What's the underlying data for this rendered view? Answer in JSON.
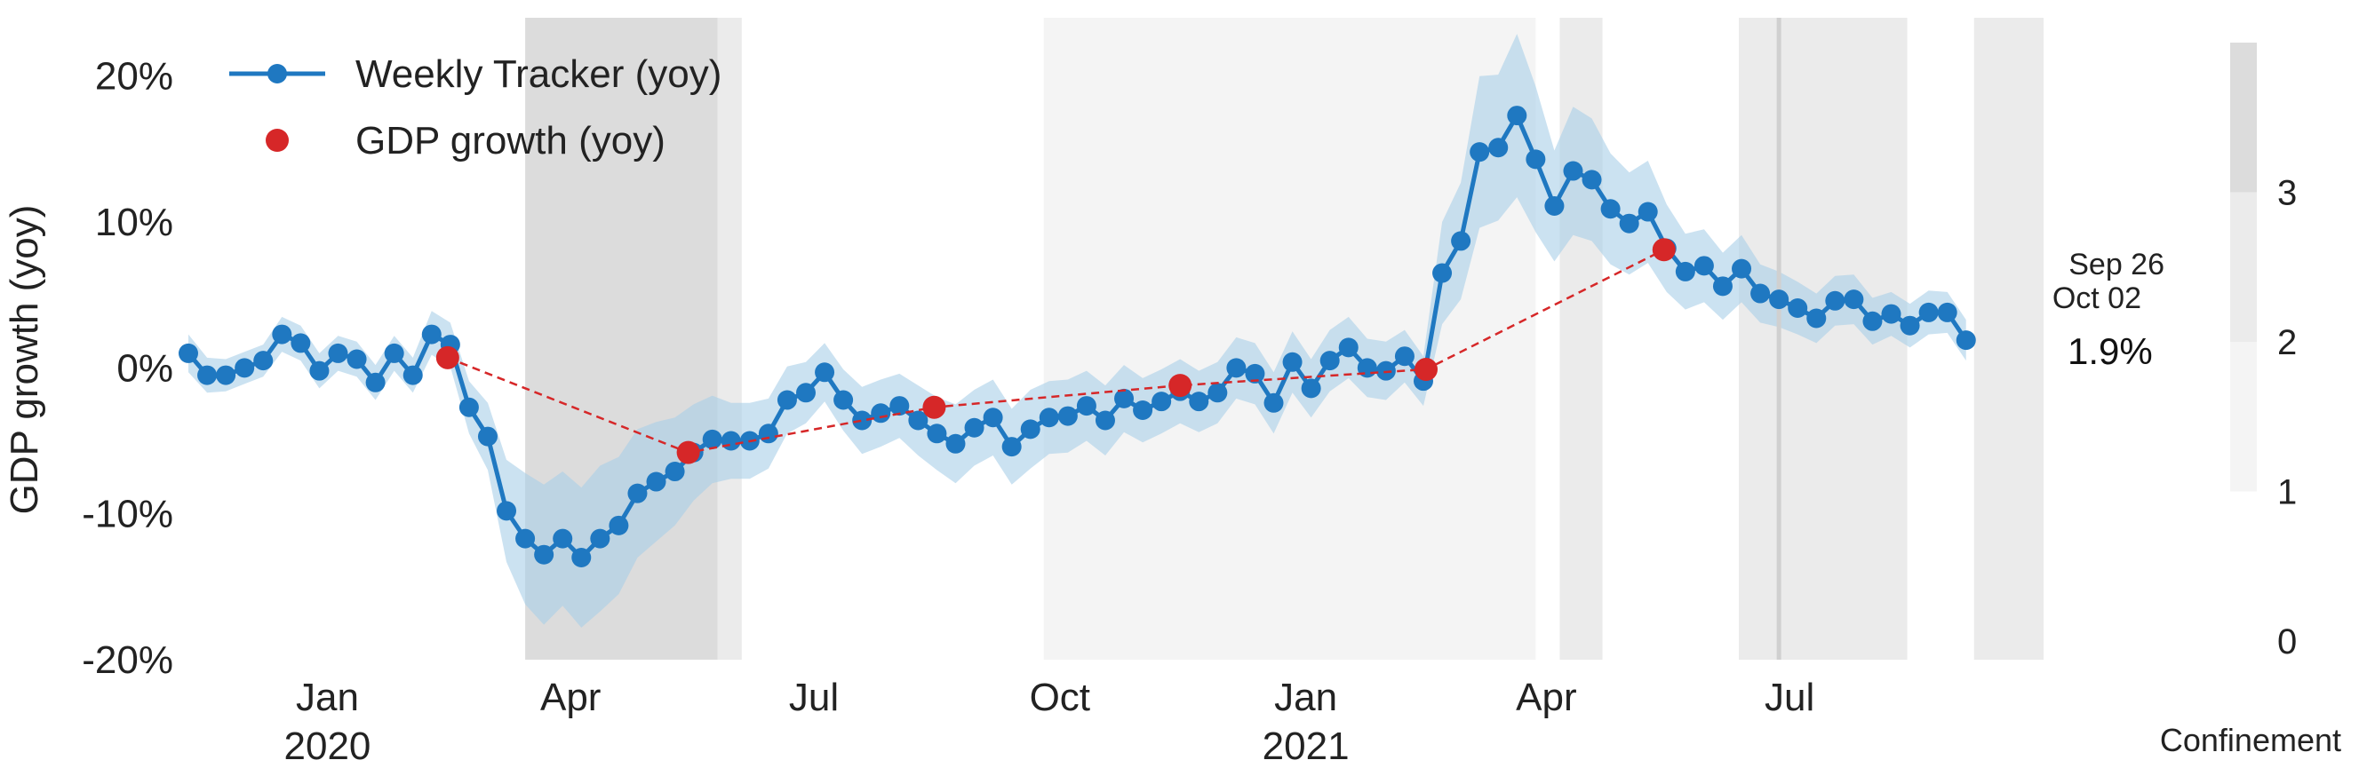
{
  "chart_data": {
    "type": "line",
    "ylabel": "GDP growth (yoy)",
    "ylim": [
      -20,
      24
    ],
    "yticks": [
      -20,
      -10,
      0,
      10,
      20
    ],
    "ytick_labels": [
      "-20%",
      "-10%",
      "0%",
      "10%",
      "20%"
    ],
    "xticks": [
      {
        "date": "2020-01-01",
        "label": "Jan",
        "year": "2020"
      },
      {
        "date": "2020-04-01",
        "label": "Apr",
        "year": ""
      },
      {
        "date": "2020-07-01",
        "label": "Jul",
        "year": ""
      },
      {
        "date": "2020-10-01",
        "label": "Oct",
        "year": ""
      },
      {
        "date": "2021-01-01",
        "label": "Jan",
        "year": "2021"
      },
      {
        "date": "2021-04-01",
        "label": "Apr",
        "year": ""
      },
      {
        "date": "2021-07-01",
        "label": "Jul",
        "year": ""
      }
    ],
    "x_start": "2019-11-10",
    "x_end": "2021-10-04",
    "colors": {
      "tracker": "#1f78c1",
      "band": "#a8cfe8",
      "gdp": "#d62728"
    },
    "legend": {
      "position": "top-left",
      "entries": [
        {
          "label": "Weekly Tracker (yoy)",
          "marker": "line-dot",
          "color": "#1f78c1"
        },
        {
          "label": "GDP growth (yoy)",
          "marker": "dot",
          "color": "#d62728"
        }
      ]
    },
    "annotation": {
      "date_1": "Sep 26",
      "date_2": "Oct 02",
      "value": "1.9%"
    },
    "vertical_line_date": "2021-06-27",
    "confinement": {
      "label": "Confinement",
      "ticks": [
        "0",
        "1",
        "2",
        "3"
      ],
      "levels": [
        {
          "level": 3,
          "color": "#dcdcdc"
        },
        {
          "level": 2,
          "color": "#ebebeb"
        },
        {
          "level": 1,
          "color": "#f4f4f4"
        }
      ],
      "periods": [
        {
          "start": "2020-03-15",
          "end": "2020-05-26",
          "level": 3
        },
        {
          "start": "2020-05-26",
          "end": "2020-06-04",
          "level": 2
        },
        {
          "start": "2020-09-25",
          "end": "2021-03-28",
          "level": 1
        },
        {
          "start": "2021-04-06",
          "end": "2021-04-22",
          "level": 2
        },
        {
          "start": "2021-06-12",
          "end": "2021-08-14",
          "level": 2
        },
        {
          "start": "2021-09-08",
          "end": "2021-10-04",
          "level": 2
        }
      ]
    },
    "series": [
      {
        "name": "Weekly Tracker (yoy)",
        "start_date": "2019-11-10",
        "step_days": 7,
        "values": [
          1.0,
          -0.5,
          -0.5,
          0.0,
          0.5,
          2.3,
          1.7,
          -0.2,
          1.0,
          0.6,
          -1.0,
          1.0,
          -0.5,
          2.3,
          1.6,
          -2.7,
          -4.7,
          -9.8,
          -11.7,
          -12.8,
          -11.7,
          -13.0,
          -11.7,
          -10.8,
          -8.6,
          -7.8,
          -7.1,
          -5.8,
          -4.9,
          -5.0,
          -5.0,
          -4.5,
          -2.2,
          -1.7,
          -0.3,
          -2.2,
          -3.6,
          -3.1,
          -2.6,
          -3.6,
          -4.5,
          -5.2,
          -4.1,
          -3.4,
          -5.4,
          -4.2,
          -3.4,
          -3.3,
          -2.6,
          -3.6,
          -2.1,
          -2.9,
          -2.3,
          -1.6,
          -2.3,
          -1.7,
          0.0,
          -0.4,
          -2.4,
          0.4,
          -1.4,
          0.5,
          1.4,
          0.0,
          -0.2,
          0.8,
          -0.9,
          6.5,
          8.7,
          14.8,
          15.1,
          17.3,
          14.3,
          11.1,
          13.5,
          12.9,
          10.9,
          9.9,
          10.7,
          8.2,
          6.6,
          7.0,
          5.6,
          6.8,
          5.1,
          4.7,
          4.1,
          3.4,
          4.6,
          4.7,
          3.2,
          3.7,
          2.9,
          3.8,
          3.8,
          1.9
        ],
        "lower": [
          -0.3,
          -1.7,
          -1.6,
          -1.1,
          -0.6,
          1.1,
          0.5,
          -1.4,
          -0.2,
          -0.6,
          -2.2,
          -0.2,
          -1.7,
          0.9,
          0.1,
          -4.5,
          -7.0,
          -13.3,
          -16.2,
          -17.6,
          -16.3,
          -17.8,
          -16.7,
          -15.5,
          -13.0,
          -11.9,
          -10.8,
          -9.1,
          -7.9,
          -7.6,
          -7.6,
          -6.9,
          -4.5,
          -3.8,
          -2.3,
          -4.3,
          -5.9,
          -5.4,
          -4.8,
          -6.0,
          -7.0,
          -7.9,
          -6.7,
          -6.0,
          -8.0,
          -6.9,
          -5.9,
          -5.8,
          -5.0,
          -6.0,
          -4.4,
          -5.1,
          -4.5,
          -3.8,
          -4.4,
          -3.8,
          -2.1,
          -2.5,
          -4.5,
          -1.7,
          -3.4,
          -1.6,
          -0.7,
          -2.0,
          -2.2,
          -1.0,
          -2.6,
          3.0,
          4.7,
          9.6,
          10.1,
          11.7,
          9.3,
          7.3,
          9.1,
          8.7,
          7.1,
          6.4,
          7.2,
          5.2,
          4.0,
          4.5,
          3.3,
          4.5,
          3.1,
          2.8,
          2.3,
          1.7,
          2.9,
          3.0,
          1.6,
          2.2,
          1.4,
          2.3,
          2.4,
          0.5
        ],
        "upper": [
          2.3,
          0.7,
          0.6,
          1.1,
          1.6,
          3.5,
          2.9,
          1.0,
          2.2,
          1.8,
          0.2,
          2.2,
          0.7,
          3.9,
          3.1,
          -0.9,
          -2.4,
          -6.3,
          -7.2,
          -8.0,
          -7.1,
          -8.2,
          -6.7,
          -6.1,
          -4.2,
          -3.7,
          -3.4,
          -2.5,
          -1.9,
          -2.4,
          -2.4,
          -2.1,
          0.1,
          0.4,
          1.7,
          -0.1,
          -1.3,
          -0.8,
          -0.4,
          -1.2,
          -2.0,
          -2.5,
          -1.5,
          -0.8,
          -2.8,
          -1.5,
          -0.9,
          -0.8,
          -0.2,
          -1.2,
          0.2,
          -0.7,
          -0.1,
          0.6,
          -0.2,
          0.4,
          2.1,
          1.7,
          -0.3,
          2.5,
          0.6,
          2.6,
          3.5,
          2.0,
          1.8,
          2.6,
          0.8,
          10.0,
          12.7,
          20.0,
          20.1,
          22.9,
          19.3,
          14.9,
          17.9,
          17.1,
          14.7,
          13.4,
          14.2,
          11.2,
          9.2,
          9.5,
          7.9,
          9.1,
          7.1,
          6.6,
          5.9,
          5.1,
          6.3,
          6.4,
          4.8,
          5.2,
          4.4,
          5.3,
          5.2,
          3.3
        ]
      },
      {
        "name": "GDP growth (yoy)",
        "points": [
          {
            "date": "2020-02-15",
            "value": 0.7
          },
          {
            "date": "2020-05-15",
            "value": -5.8
          },
          {
            "date": "2020-08-15",
            "value": -2.7
          },
          {
            "date": "2020-11-15",
            "value": -1.2
          },
          {
            "date": "2021-02-15",
            "value": -0.1
          },
          {
            "date": "2021-05-15",
            "value": 8.1
          }
        ]
      }
    ]
  }
}
